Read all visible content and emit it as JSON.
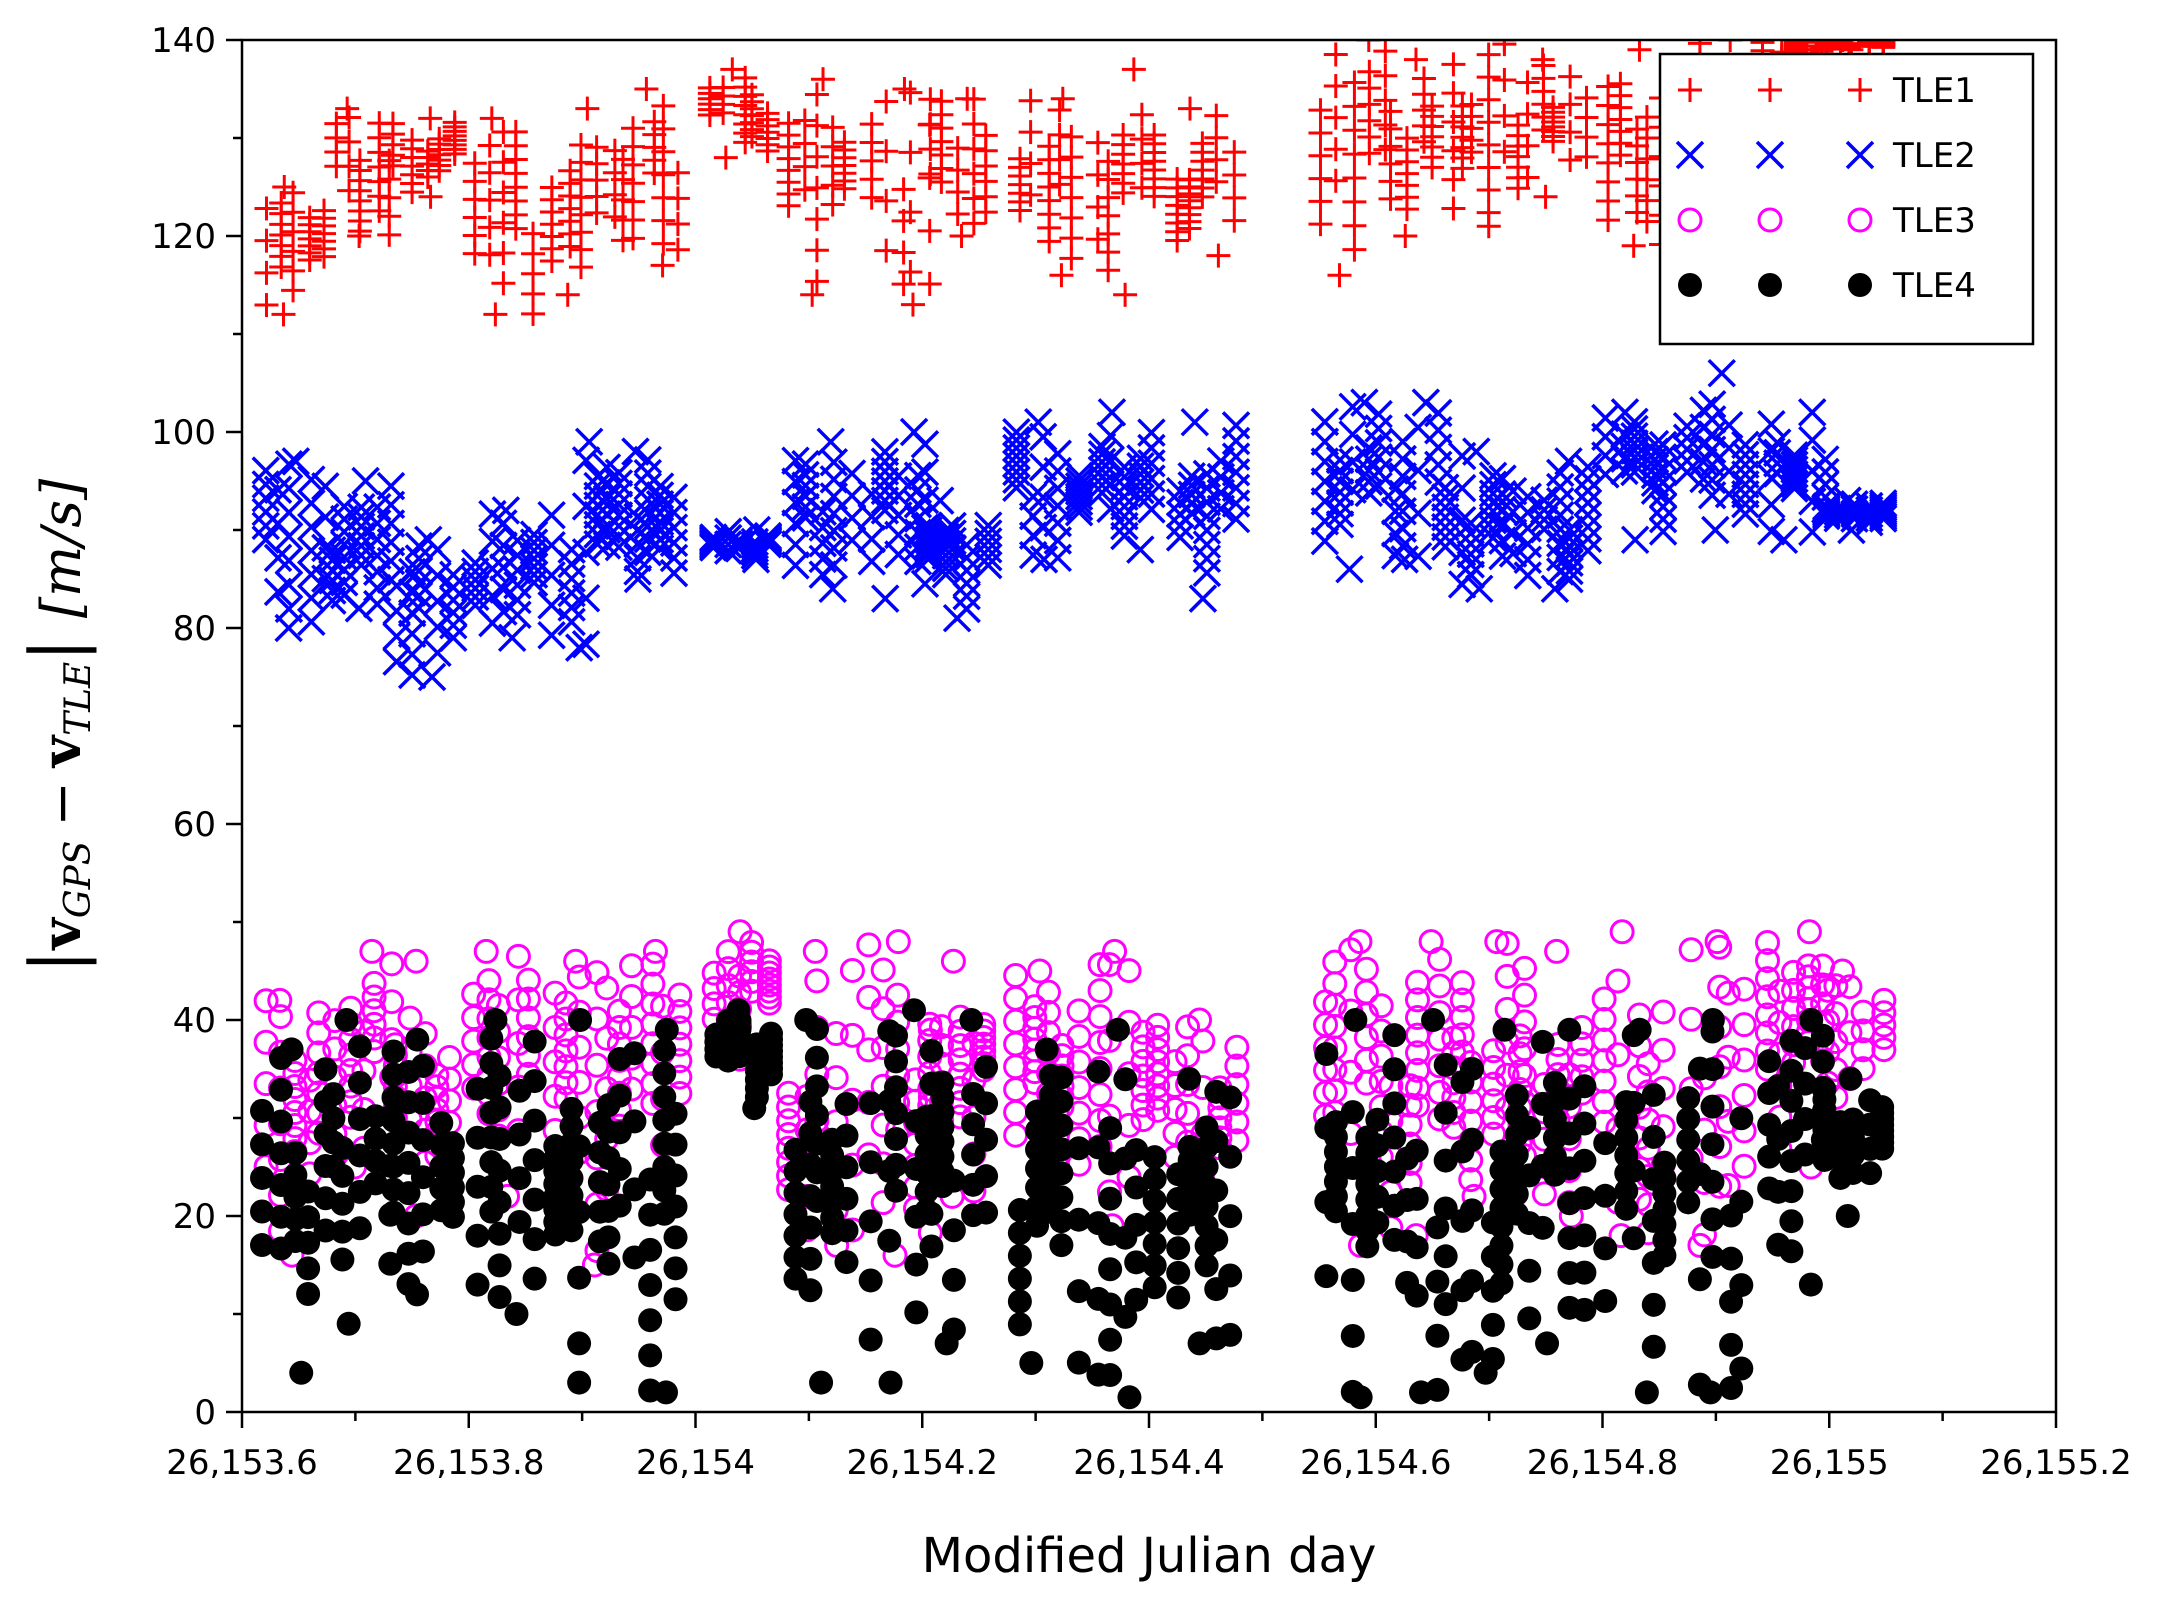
{
  "chart_data": {
    "type": "scatter",
    "title": "",
    "xlabel": "Modified Julian day",
    "ylabel": "|v_GPS − v_TLE| [m/s]",
    "ylabel_parts": {
      "bar": "|",
      "v1": "v",
      "sub1": "GPS",
      "minus": "−",
      "v2": "v",
      "sub2": "TLE",
      "unit": "[m/s]"
    },
    "xlim": [
      26153.6,
      26155.2
    ],
    "ylim": [
      0,
      140
    ],
    "xticks": [
      {
        "value": 26153.6,
        "label": "26,153.6"
      },
      {
        "value": 26153.8,
        "label": "26,153.8"
      },
      {
        "value": 26154.0,
        "label": "26,154"
      },
      {
        "value": 26154.2,
        "label": "26,154.2"
      },
      {
        "value": 26154.4,
        "label": "26,154.4"
      },
      {
        "value": 26154.6,
        "label": "26,154.6"
      },
      {
        "value": 26154.8,
        "label": "26,154.8"
      },
      {
        "value": 26155.0,
        "label": "26,155"
      },
      {
        "value": 26155.2,
        "label": "26,155.2"
      }
    ],
    "yticks": [
      {
        "value": 0,
        "label": "0"
      },
      {
        "value": 20,
        "label": "20"
      },
      {
        "value": 40,
        "label": "40"
      },
      {
        "value": 60,
        "label": "60"
      },
      {
        "value": 80,
        "label": "80"
      },
      {
        "value": 100,
        "label": "100"
      },
      {
        "value": 120,
        "label": "120"
      },
      {
        "value": 140,
        "label": "140"
      }
    ],
    "grid": false,
    "legend_position": "top-right",
    "series": [
      {
        "name": "TLE1",
        "marker": "plus",
        "color": "#ff0000",
        "range": [
          112,
          140
        ],
        "center": [
          120,
          135
        ]
      },
      {
        "name": "TLE2",
        "marker": "x",
        "color": "#0000ff",
        "range": [
          75,
          106
        ],
        "center": [
          82,
          100
        ]
      },
      {
        "name": "TLE3",
        "marker": "circle-open",
        "color": "#ff00ff",
        "range": [
          15,
          49
        ],
        "center": [
          25,
          45
        ]
      },
      {
        "name": "TLE4",
        "marker": "circle-filled",
        "color": "#000000",
        "range": [
          1.5,
          41
        ],
        "center": [
          5,
          38
        ]
      }
    ],
    "clusters": [
      {
        "x": 26153.645,
        "tle1": [
          112,
          125
        ],
        "tle2": [
          80,
          97
        ],
        "tle3": [
          16,
          42
        ],
        "tle4": [
          4,
          37
        ]
      },
      {
        "x": 26153.705,
        "tle1": [
          120,
          133
        ],
        "tle2": [
          82,
          95
        ],
        "tle3": [
          25,
          47
        ],
        "tle4": [
          9,
          40
        ]
      },
      {
        "x": 26153.76,
        "tle1": [
          124,
          132
        ],
        "tle2": [
          75,
          89
        ],
        "tle3": [
          20,
          46
        ],
        "tle4": [
          12,
          38
        ]
      },
      {
        "x": 26153.83,
        "tle1": [
          112,
          132
        ],
        "tle2": [
          79,
          92
        ],
        "tle3": [
          22,
          47
        ],
        "tle4": [
          10,
          40
        ]
      },
      {
        "x": 26153.9,
        "tle1": [
          114,
          133
        ],
        "tle2": [
          78,
          99
        ],
        "tle3": [
          15,
          46
        ],
        "tle4": [
          3,
          40
        ]
      },
      {
        "x": 26153.96,
        "tle1": [
          117,
          135
        ],
        "tle2": [
          85,
          98
        ],
        "tle3": [
          24,
          47
        ],
        "tle4": [
          2,
          39
        ]
      },
      {
        "x": 26154.04,
        "tle1": [
          128,
          137
        ],
        "tle2": [
          87,
          90
        ],
        "tle3": [
          36,
          49
        ],
        "tle4": [
          31,
          41
        ]
      },
      {
        "x": 26154.11,
        "tle1": [
          114,
          136
        ],
        "tle2": [
          84,
          99
        ],
        "tle3": [
          17,
          47
        ],
        "tle4": [
          3,
          40
        ]
      },
      {
        "x": 26154.18,
        "tle1": [
          113,
          135
        ],
        "tle2": [
          83,
          100
        ],
        "tle3": [
          16,
          48
        ],
        "tle4": [
          3,
          41
        ]
      },
      {
        "x": 26154.23,
        "tle1": [
          120,
          134
        ],
        "tle2": [
          81,
          93
        ],
        "tle3": [
          22,
          46
        ],
        "tle4": [
          7,
          40
        ]
      },
      {
        "x": 26154.31,
        "tle1": [
          116,
          134
        ],
        "tle2": [
          87,
          101
        ],
        "tle3": [
          25,
          45
        ],
        "tle4": [
          5,
          37
        ]
      },
      {
        "x": 26154.38,
        "tle1": [
          114,
          137
        ],
        "tle2": [
          88,
          102
        ],
        "tle3": [
          19,
          47
        ],
        "tle4": [
          1.5,
          39
        ]
      },
      {
        "x": 26154.45,
        "tle1": [
          118,
          133
        ],
        "tle2": [
          83,
          101
        ],
        "tle3": [
          21,
          40
        ],
        "tle4": [
          7,
          34
        ]
      },
      {
        "x": 26154.58,
        "tle1": [
          116,
          140
        ],
        "tle2": [
          86,
          103
        ],
        "tle3": [
          17,
          48
        ],
        "tle4": [
          1.5,
          40
        ]
      },
      {
        "x": 26154.64,
        "tle1": [
          120,
          138
        ],
        "tle2": [
          87,
          103
        ],
        "tle3": [
          18,
          48
        ],
        "tle4": [
          2,
          40
        ]
      },
      {
        "x": 26154.7,
        "tle1": [
          121,
          140
        ],
        "tle2": [
          84,
          98
        ],
        "tle3": [
          22,
          48
        ],
        "tle4": [
          4,
          39
        ]
      },
      {
        "x": 26154.76,
        "tle1": [
          124,
          138
        ],
        "tle2": [
          84,
          97
        ],
        "tle3": [
          20,
          47
        ],
        "tle4": [
          7,
          39
        ]
      },
      {
        "x": 26154.83,
        "tle1": [
          119,
          139
        ],
        "tle2": [
          89,
          102
        ],
        "tle3": [
          18,
          49
        ],
        "tle4": [
          2,
          39
        ]
      },
      {
        "x": 26154.9,
        "tle1": [
          118,
          140
        ],
        "tle2": [
          90,
          106
        ],
        "tle3": [
          17,
          48
        ],
        "tle4": [
          2,
          40
        ]
      },
      {
        "x": 26154.97,
        "tle1": [
          136,
          140
        ],
        "tle2": [
          89,
          102
        ],
        "tle3": [
          25,
          49
        ],
        "tle4": [
          13,
          40
        ]
      },
      {
        "x": 26155.02,
        "tle1": [
          139,
          140
        ],
        "tle2": [
          90,
          93
        ],
        "tle3": [
          28,
          45
        ],
        "tle4": [
          20,
          34
        ]
      }
    ]
  }
}
